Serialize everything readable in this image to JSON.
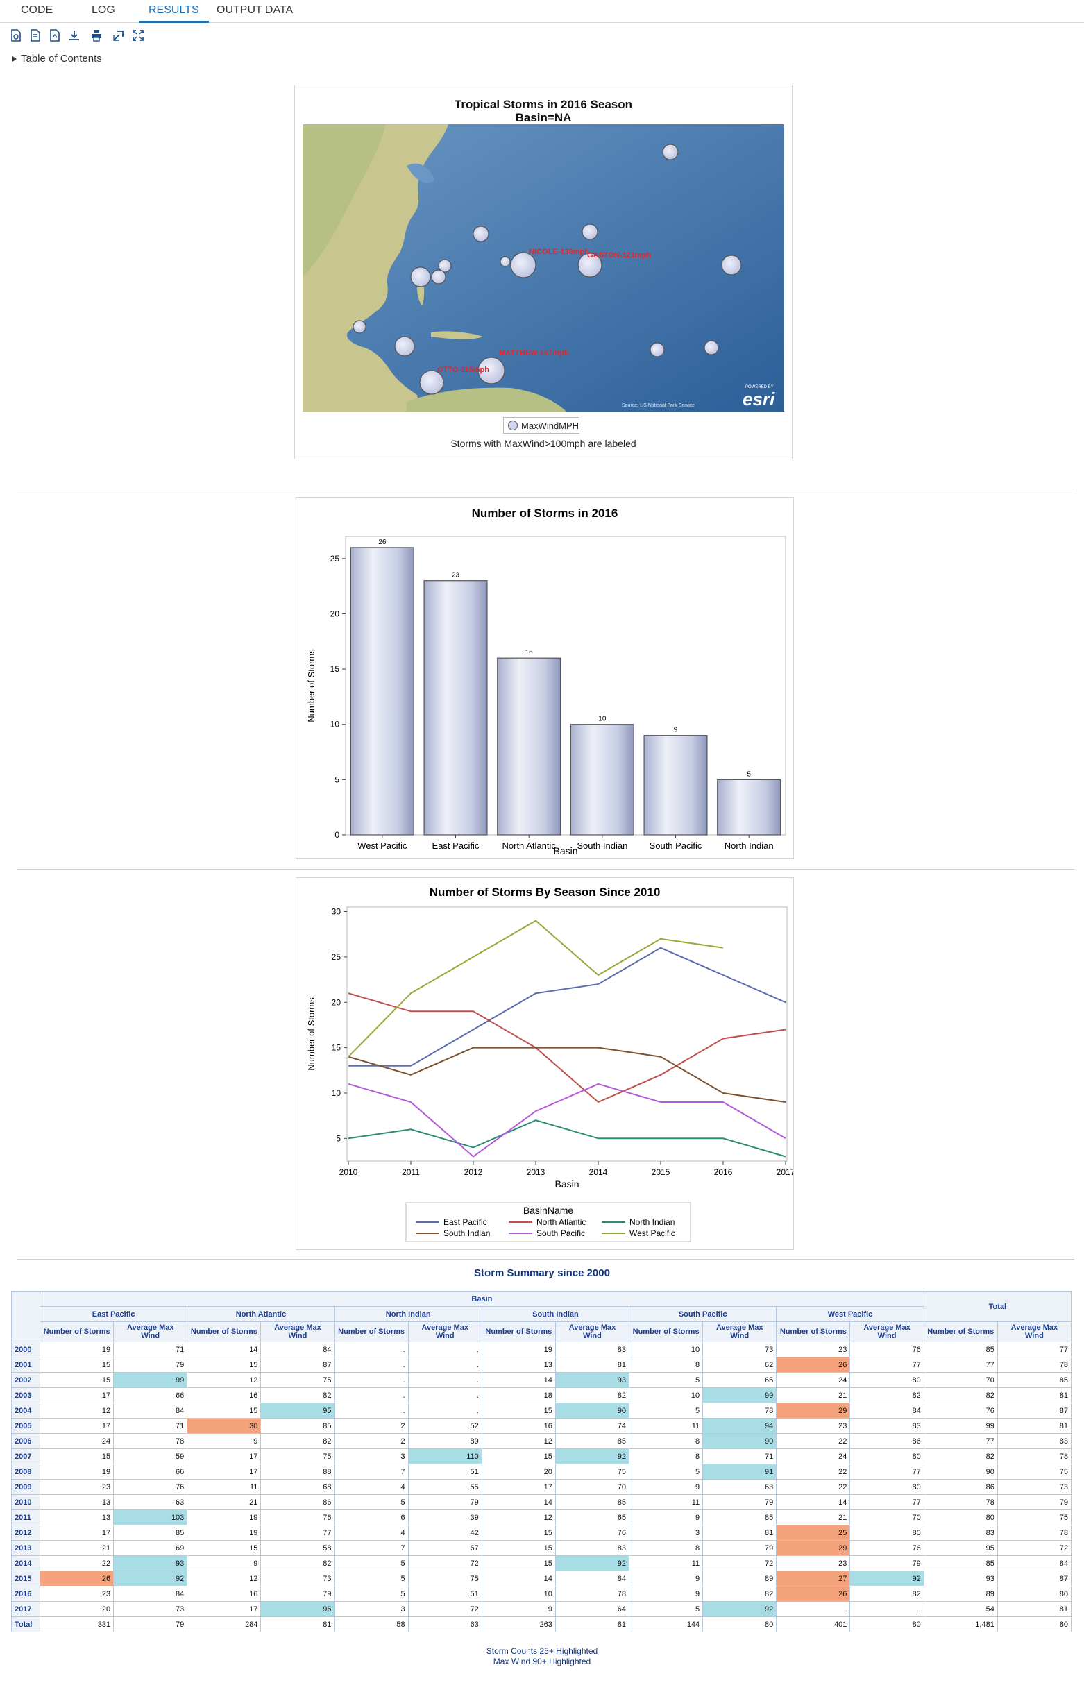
{
  "tabs": [
    "CODE",
    "LOG",
    "RESULTS",
    "OUTPUT DATA"
  ],
  "active_tab": "RESULTS",
  "toc_label": "Table of Contents",
  "map": {
    "title": "Tropical Storms in 2016 Season",
    "subtitle": "Basin=NA",
    "labels": [
      "NICOLE-138mph",
      "GASTON-121mph",
      "MATTHEW-167mph",
      "OTTO-115mph"
    ],
    "legend": "MaxWindMPH",
    "caption": "Storms with MaxWind>100mph are labeled",
    "attribution": "Source: US National Park Service",
    "logo_small": "POWERED BY",
    "logo": "esri"
  },
  "chart_data": [
    {
      "type": "bar",
      "title": "Number of Storms in 2016",
      "xlabel": "Basin",
      "ylabel": "Number of Storms",
      "categories": [
        "West Pacific",
        "East Pacific",
        "North Atlantic",
        "South Indian",
        "South Pacific",
        "North Indian"
      ],
      "values": [
        26,
        23,
        16,
        10,
        9,
        5
      ],
      "ylim": [
        0,
        27
      ],
      "yticks": [
        0,
        5,
        10,
        15,
        20,
        25
      ]
    },
    {
      "type": "line",
      "title": "Number of Storms By Season Since 2010",
      "xlabel": "Basin",
      "ylabel": "Number of Storms",
      "x": [
        2010,
        2011,
        2012,
        2013,
        2014,
        2015,
        2016,
        2017
      ],
      "ylim": [
        2.5,
        30.5
      ],
      "yticks": [
        5,
        10,
        15,
        20,
        25,
        30
      ],
      "legend_title": "BasinName",
      "series": [
        {
          "name": "East Pacific",
          "color": "#5b6bb0",
          "values": [
            13,
            13,
            17,
            21,
            22,
            26,
            23,
            20
          ]
        },
        {
          "name": "North Atlantic",
          "color": "#c0504d",
          "values": [
            21,
            19,
            19,
            15,
            9,
            12,
            16,
            17
          ]
        },
        {
          "name": "North Indian",
          "color": "#2e8b78",
          "values": [
            5,
            6,
            4,
            7,
            5,
            5,
            5,
            3
          ]
        },
        {
          "name": "South Indian",
          "color": "#7a5230",
          "values": [
            14,
            12,
            15,
            15,
            15,
            14,
            10,
            9
          ]
        },
        {
          "name": "South Pacific",
          "color": "#b45ad9",
          "values": [
            11,
            9,
            3,
            8,
            11,
            9,
            9,
            5
          ]
        },
        {
          "name": "West Pacific",
          "color": "#9aa83a",
          "values": [
            14,
            21,
            25,
            29,
            23,
            27,
            26,
            null
          ]
        }
      ]
    }
  ],
  "table": {
    "title": "Storm Summary since 2000",
    "basin_header": "Basin",
    "groups": [
      "East Pacific",
      "North Atlantic",
      "North Indian",
      "South Indian",
      "South Pacific",
      "West Pacific",
      "Total"
    ],
    "subheaders": [
      "Number of Storms",
      "Average Max Wind"
    ],
    "rows": [
      [
        "2000",
        "19",
        "71",
        "14",
        "84",
        ".",
        ".",
        "19",
        "83",
        "10",
        "73",
        "23",
        "76",
        "85",
        "77"
      ],
      [
        "2001",
        "15",
        "79",
        "15",
        "87",
        ".",
        ".",
        "13",
        "81",
        "8",
        "62",
        "26",
        "77",
        "77",
        "78"
      ],
      [
        "2002",
        "15",
        "99",
        "12",
        "75",
        ".",
        ".",
        "14",
        "93",
        "5",
        "65",
        "24",
        "80",
        "70",
        "85"
      ],
      [
        "2003",
        "17",
        "66",
        "16",
        "82",
        ".",
        ".",
        "18",
        "82",
        "10",
        "99",
        "21",
        "82",
        "82",
        "81"
      ],
      [
        "2004",
        "12",
        "84",
        "15",
        "95",
        ".",
        ".",
        "15",
        "90",
        "5",
        "78",
        "29",
        "84",
        "76",
        "87"
      ],
      [
        "2005",
        "17",
        "71",
        "30",
        "85",
        "2",
        "52",
        "16",
        "74",
        "11",
        "94",
        "23",
        "83",
        "99",
        "81"
      ],
      [
        "2006",
        "24",
        "78",
        "9",
        "82",
        "2",
        "89",
        "12",
        "85",
        "8",
        "90",
        "22",
        "86",
        "77",
        "83"
      ],
      [
        "2007",
        "15",
        "59",
        "17",
        "75",
        "3",
        "110",
        "15",
        "92",
        "8",
        "71",
        "24",
        "80",
        "82",
        "78"
      ],
      [
        "2008",
        "19",
        "66",
        "17",
        "88",
        "7",
        "51",
        "20",
        "75",
        "5",
        "91",
        "22",
        "77",
        "90",
        "75"
      ],
      [
        "2009",
        "23",
        "76",
        "11",
        "68",
        "4",
        "55",
        "17",
        "70",
        "9",
        "63",
        "22",
        "80",
        "86",
        "73"
      ],
      [
        "2010",
        "13",
        "63",
        "21",
        "86",
        "5",
        "79",
        "14",
        "85",
        "11",
        "79",
        "14",
        "77",
        "78",
        "79"
      ],
      [
        "2011",
        "13",
        "103",
        "19",
        "76",
        "6",
        "39",
        "12",
        "65",
        "9",
        "85",
        "21",
        "70",
        "80",
        "75"
      ],
      [
        "2012",
        "17",
        "85",
        "19",
        "77",
        "4",
        "42",
        "15",
        "76",
        "3",
        "81",
        "25",
        "80",
        "83",
        "78"
      ],
      [
        "2013",
        "21",
        "69",
        "15",
        "58",
        "7",
        "67",
        "15",
        "83",
        "8",
        "79",
        "29",
        "76",
        "95",
        "72"
      ],
      [
        "2014",
        "22",
        "93",
        "9",
        "82",
        "5",
        "72",
        "15",
        "92",
        "11",
        "72",
        "23",
        "79",
        "85",
        "84"
      ],
      [
        "2015",
        "26",
        "92",
        "12",
        "73",
        "5",
        "75",
        "14",
        "84",
        "9",
        "89",
        "27",
        "92",
        "93",
        "87"
      ],
      [
        "2016",
        "23",
        "84",
        "16",
        "79",
        "5",
        "51",
        "10",
        "78",
        "9",
        "82",
        "26",
        "82",
        "89",
        "80"
      ],
      [
        "2017",
        "20",
        "73",
        "17",
        "96",
        "3",
        "72",
        "9",
        "64",
        "5",
        "92",
        ".",
        ".",
        "54",
        "81"
      ],
      [
        "Total",
        "331",
        "79",
        "284",
        "81",
        "58",
        "63",
        "263",
        "81",
        "144",
        "80",
        "401",
        "80",
        "1,481",
        "80"
      ]
    ],
    "notes": [
      "Storm Counts 25+ Highlighted",
      "Max Wind 90+ Highlighted"
    ]
  }
}
